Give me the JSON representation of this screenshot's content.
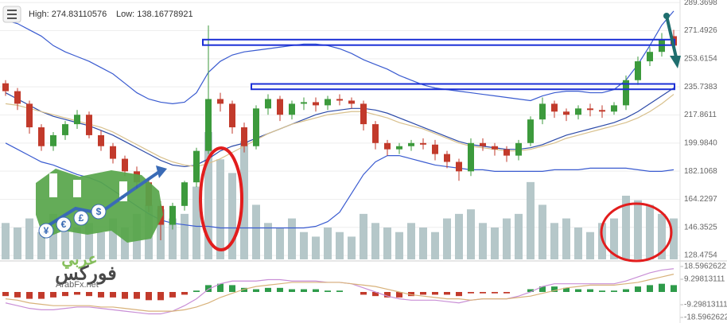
{
  "legend": {
    "high": "High: 274.83110576",
    "low": "Low: 138.16778921"
  },
  "watermark": {
    "symbols": [
      "¥",
      "€",
      "£",
      "$"
    ],
    "brand_top": "عربي",
    "brand_bottom": "فوركس",
    "site": "ArabFx.net"
  },
  "chart_data": [
    {
      "type": "candlestick",
      "ylim": [
        126,
        291
      ],
      "yticks": [
        289.3698,
        271.4926,
        253.6154,
        235.7383,
        217.8611,
        {
          "value": 199.984,
          "label": "199.9840"
        },
        182.1068,
        164.2297,
        146.3525,
        128.4754
      ],
      "grid": true,
      "up_color": "#3c9a3c",
      "down_color": "#c23a2b",
      "volume_color": "#b5c7c9",
      "open": [
        238,
        233,
        225,
        210,
        198,
        205,
        212,
        218,
        205,
        198,
        190,
        182,
        175,
        160,
        148,
        160,
        175,
        195,
        228,
        225,
        210,
        198,
        222,
        228,
        218,
        225,
        226,
        224,
        228,
        227,
        225,
        212,
        200,
        196,
        198,
        200,
        199,
        193,
        188,
        182,
        200,
        198,
        196,
        192,
        200,
        215,
        225,
        220,
        218,
        222,
        221,
        220,
        224,
        240,
        252,
        258,
        268
      ],
      "high": [
        240,
        235,
        227,
        212,
        207,
        214,
        221,
        220,
        208,
        200,
        192,
        185,
        177,
        163,
        162,
        176,
        197,
        274.83,
        232,
        227,
        213,
        224,
        231,
        230,
        227,
        229,
        229,
        230,
        231,
        229,
        227,
        214,
        202,
        200,
        202,
        203,
        202,
        195,
        190,
        203,
        203,
        200,
        198,
        202,
        217,
        229,
        227,
        222,
        224,
        225,
        224,
        226,
        243,
        255,
        261,
        270,
        272
      ],
      "low": [
        230,
        221,
        206,
        195,
        195,
        202,
        209,
        203,
        195,
        187,
        179,
        171,
        156,
        138.17,
        145,
        157,
        172,
        193,
        220,
        206,
        194,
        196,
        218,
        214,
        215,
        221,
        220,
        221,
        224,
        222,
        208,
        196,
        192,
        193,
        195,
        196,
        189,
        184,
        176,
        179,
        195,
        192,
        188,
        189,
        198,
        212,
        216,
        214,
        215,
        217,
        216,
        218,
        221,
        237,
        249,
        255,
        258
      ],
      "close": [
        233,
        225,
        210,
        198,
        205,
        212,
        218,
        205,
        198,
        190,
        182,
        175,
        160,
        148,
        160,
        175,
        195,
        228,
        225,
        210,
        198,
        222,
        228,
        218,
        225,
        226,
        224,
        228,
        227,
        225,
        212,
        200,
        196,
        198,
        200,
        199,
        193,
        188,
        182,
        200,
        198,
        196,
        192,
        200,
        215,
        225,
        220,
        218,
        222,
        221,
        220,
        224,
        240,
        252,
        258,
        266,
        262
      ],
      "volume": [
        40,
        35,
        45,
        30,
        50,
        45,
        35,
        40,
        30,
        45,
        35,
        50,
        60,
        55,
        45,
        50,
        80,
        140,
        110,
        95,
        130,
        60,
        40,
        35,
        45,
        30,
        25,
        35,
        30,
        25,
        50,
        40,
        35,
        30,
        40,
        35,
        30,
        45,
        50,
        55,
        40,
        35,
        45,
        50,
        85,
        60,
        40,
        45,
        35,
        30,
        40,
        45,
        70,
        65,
        60,
        50,
        45
      ],
      "series": [
        {
          "color": "#3a5bd0",
          "values": [
            278,
            276,
            272,
            268,
            262,
            258,
            255,
            252,
            248,
            244,
            238,
            232,
            228,
            226,
            225,
            226,
            232,
            245,
            252,
            256,
            258,
            259,
            260,
            261,
            262,
            263,
            263,
            262,
            260,
            257,
            253,
            250,
            247,
            243,
            240,
            237,
            235,
            234,
            233,
            232,
            231,
            230,
            229,
            228,
            227,
            230,
            232,
            233,
            233,
            232,
            232,
            234,
            240,
            250,
            262,
            275,
            284
          ]
        },
        {
          "color": "#2c4aa8",
          "values": [
            232,
            228,
            224,
            220,
            217,
            215,
            213,
            211,
            208,
            205,
            201,
            197,
            193,
            189,
            186,
            185,
            186,
            190,
            195,
            198,
            200,
            203,
            206,
            209,
            212,
            215,
            218,
            220,
            221,
            222,
            222,
            221,
            219,
            216,
            213,
            210,
            207,
            204,
            201,
            199,
            198,
            197,
            196,
            196,
            197,
            199,
            202,
            205,
            207,
            209,
            211,
            213,
            216,
            220,
            225,
            230,
            235
          ]
        },
        {
          "color": "#3a5bd0",
          "values": [
            200,
            196,
            192,
            188,
            186,
            183,
            180,
            178,
            175,
            170,
            165,
            160,
            155,
            151,
            149,
            148,
            147,
            147,
            146,
            146,
            146,
            146,
            146,
            146,
            146,
            146,
            147,
            150,
            156,
            168,
            180,
            188,
            192,
            192,
            190,
            188,
            186,
            185,
            184,
            183,
            183,
            182,
            182,
            182,
            182,
            182,
            183,
            183,
            183,
            184,
            184,
            184,
            184,
            183,
            182,
            182,
            183
          ]
        },
        {
          "color": "#d8c08c",
          "values": [
            225,
            224,
            222,
            220,
            218,
            216,
            214,
            212,
            210,
            207,
            203,
            199,
            195,
            191,
            188,
            186,
            185,
            187,
            190,
            194,
            198,
            202,
            206,
            209,
            212,
            214,
            216,
            218,
            219,
            220,
            220,
            218,
            216,
            213,
            211,
            209,
            206,
            203,
            200,
            198,
            197,
            196,
            195,
            195,
            196,
            198,
            200,
            203,
            205,
            207,
            209,
            211,
            213,
            216,
            220,
            225,
            231
          ]
        }
      ],
      "zones": [
        {
          "low": 262.3,
          "high": 265.8,
          "color": "#1b2fd6"
        },
        {
          "low": 234.2,
          "high": 237.6,
          "color": "#1b2fd6"
        }
      ]
    },
    {
      "type": "macd",
      "ylim": [
        -21.5,
        21.5
      ],
      "yticks": [
        18.5962622,
        9.29813111,
        -9.29813111,
        -18.5962622
      ],
      "up_color": "#2e9b4a",
      "down_color": "#c23a2b",
      "histogram": [
        -3,
        -4,
        -5,
        -5,
        -4,
        -3,
        -2,
        -3,
        -4,
        -4,
        -5,
        -5,
        -6,
        -6,
        -4,
        -2,
        1,
        5,
        6,
        5,
        3,
        2,
        3,
        3,
        2,
        2,
        2,
        1,
        1,
        0,
        -2,
        -3,
        -4,
        -4,
        -3,
        -2,
        -2,
        -2,
        -3,
        -1,
        -1,
        -1,
        -1,
        0,
        2,
        4,
        4,
        3,
        2,
        2,
        1,
        1,
        2,
        4,
        5,
        6,
        5
      ],
      "series": [
        {
          "color": "#c98fd6",
          "values": [
            -8,
            -10,
            -12,
            -13,
            -13,
            -12,
            -11,
            -11,
            -12,
            -13,
            -14,
            -15,
            -16,
            -16,
            -14,
            -10,
            -5,
            2,
            6,
            8,
            8,
            8,
            9,
            9,
            8,
            8,
            8,
            7,
            7,
            6,
            3,
            0,
            -3,
            -5,
            -6,
            -6,
            -6,
            -7,
            -8,
            -6,
            -5,
            -5,
            -5,
            -3,
            0,
            4,
            6,
            6,
            6,
            6,
            6,
            6,
            8,
            11,
            14,
            16,
            17
          ]
        },
        {
          "color": "#d8b27a",
          "values": [
            -5,
            -6,
            -8,
            -9,
            -10,
            -10,
            -10,
            -10,
            -11,
            -11,
            -12,
            -13,
            -14,
            -14,
            -14,
            -13,
            -11,
            -8,
            -4,
            -1,
            2,
            4,
            5,
            6,
            7,
            7,
            7,
            7,
            7,
            6,
            5,
            4,
            2,
            0,
            -2,
            -3,
            -4,
            -5,
            -5,
            -6,
            -5,
            -5,
            -5,
            -4,
            -3,
            -1,
            1,
            3,
            4,
            5,
            5,
            5,
            6,
            7,
            9,
            11,
            13
          ]
        }
      ]
    }
  ]
}
